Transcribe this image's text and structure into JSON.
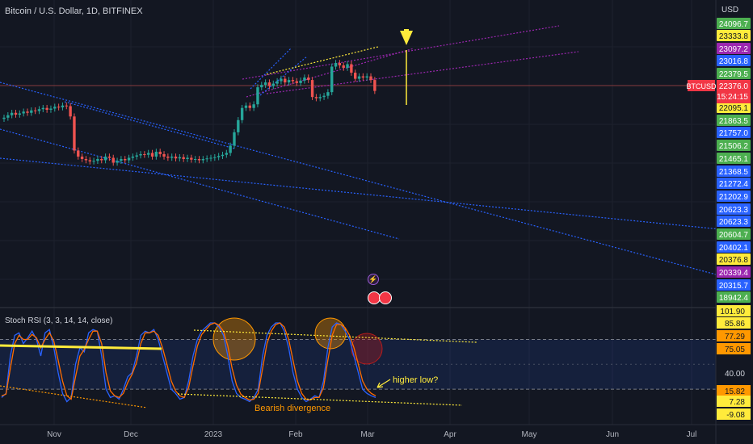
{
  "header": {
    "title": "Bitcoin / U.S. Dollar, 1D, BITFINEX",
    "currency": "USD"
  },
  "indicator": {
    "title": "Stoch RSI (3, 3, 14, 14, close)"
  },
  "annotations": {
    "bearish": "Bearish divergence",
    "higher_low": "higher low?"
  },
  "colors": {
    "background": "#131722",
    "up": "#26a69a",
    "down": "#ef5350",
    "trend_blue": "#2962ff",
    "trend_purple": "#9c27b0",
    "yellow": "#ffeb3b",
    "orange": "#ff9800",
    "k_line": "#2962ff",
    "d_line": "#ff6d00"
  },
  "chart_data": [
    {
      "type": "candlestick",
      "symbol": "BTCUSD",
      "last_price": "22376.0",
      "countdown": "15:24:15",
      "x_axis_labels": [
        "Nov",
        "Dec",
        "2023",
        "Feb",
        "Mar",
        "Apr",
        "May",
        "Jun",
        "Jul"
      ],
      "price_labels": [
        {
          "value": "24096.7",
          "color": "#4caf50"
        },
        {
          "value": "23333.8",
          "color": "#ffeb3b"
        },
        {
          "value": "23097.2",
          "color": "#9c27b0"
        },
        {
          "value": "23016.8",
          "color": "#2962ff"
        },
        {
          "value": "22379.5",
          "color": "#4caf50"
        },
        {
          "value": "22095.1",
          "color": "#ffeb3b"
        },
        {
          "value": "21863.5",
          "color": "#4caf50"
        },
        {
          "value": "21757.0",
          "color": "#2962ff"
        },
        {
          "value": "21506.2",
          "color": "#4caf50"
        },
        {
          "value": "21465.1",
          "color": "#4caf50"
        },
        {
          "value": "21368.5",
          "color": "#2962ff"
        },
        {
          "value": "21272.4",
          "color": "#2962ff"
        },
        {
          "value": "21202.9",
          "color": "#2962ff"
        },
        {
          "value": "20623.3",
          "color": "#2962ff"
        },
        {
          "value": "20623.3",
          "color": "#2962ff"
        },
        {
          "value": "20604.7",
          "color": "#4caf50"
        },
        {
          "value": "20402.1",
          "color": "#2962ff"
        },
        {
          "value": "20376.8",
          "color": "#ffeb3b"
        },
        {
          "value": "20339.4",
          "color": "#9c27b0"
        },
        {
          "value": "20315.7",
          "color": "#2962ff"
        },
        {
          "value": "18942.4",
          "color": "#4caf50"
        }
      ],
      "candles_daily_close_approx": [
        20100,
        20300,
        20500,
        20350,
        20450,
        20600,
        20500,
        20700,
        20650,
        20800,
        20900,
        20750,
        20850,
        21000,
        20950,
        21100,
        21050,
        20200,
        17400,
        16900,
        16700,
        16600,
        16500,
        16550,
        16700,
        16600,
        16900,
        16800,
        16400,
        16550,
        16700,
        16600,
        16800,
        16900,
        17000,
        17100,
        17050,
        17200,
        16900,
        17300,
        17100,
        16900,
        16800,
        16900,
        16750,
        16850,
        16700,
        16800,
        16650,
        16700,
        16600,
        16700,
        16750,
        16800,
        16850,
        16950,
        17050,
        17200,
        17800,
        18900,
        19900,
        20900,
        21100,
        20900,
        21200,
        22600,
        22800,
        23000,
        22700,
        22900,
        23100,
        23300,
        23000,
        23200,
        23100,
        22950,
        23150,
        23400,
        23200,
        21800,
        21700,
        21800,
        21900,
        22200,
        24300,
        24600,
        24400,
        24200,
        24500,
        23800,
        23300,
        23500,
        23400,
        23500,
        23200,
        22300
      ],
      "forecast_target_price": "23333.8"
    },
    {
      "type": "line",
      "title": "Stoch RSI (3, 3, 14, 14, close)",
      "ylim": [
        -9.08,
        101.9
      ],
      "band_upper": 80,
      "band_lower": 20,
      "right_labels": [
        {
          "value": "101.90",
          "color": "#ffeb3b"
        },
        {
          "value": "85.86",
          "color": "#ffeb3b"
        },
        {
          "value": "77.29",
          "color": "#ff9800"
        },
        {
          "value": "75.05",
          "color": "#ff9800"
        },
        {
          "value": "40.00",
          "color": ""
        },
        {
          "value": "15.82",
          "color": "#ff9800"
        },
        {
          "value": "7.28",
          "color": "#ffeb3b"
        },
        {
          "value": "-9.08",
          "color": "#ffeb3b"
        }
      ],
      "series": [
        {
          "name": "%K",
          "values": [
            10,
            15,
            60,
            85,
            88,
            75,
            82,
            90,
            80,
            60,
            88,
            92,
            70,
            40,
            15,
            5,
            10,
            50,
            70,
            65,
            88,
            92,
            90,
            60,
            20,
            10,
            12,
            8,
            20,
            35,
            40,
            60,
            85,
            90,
            88,
            92,
            80,
            60,
            40,
            20,
            15,
            8,
            10,
            30,
            60,
            80,
            90,
            95,
            100,
            100,
            95,
            85,
            60,
            30,
            15,
            10,
            8,
            5,
            10,
            20,
            60,
            85,
            95,
            100,
            100,
            90,
            70,
            40,
            20,
            10,
            5,
            8,
            12,
            10,
            30,
            70,
            95,
            100,
            98,
            90,
            80,
            60,
            40,
            20,
            15,
            12,
            10
          ]
        },
        {
          "name": "%D",
          "values": [
            12,
            14,
            45,
            75,
            85,
            80,
            80,
            86,
            82,
            70,
            80,
            88,
            78,
            55,
            30,
            12,
            8,
            35,
            60,
            68,
            80,
            90,
            90,
            75,
            40,
            18,
            12,
            10,
            15,
            28,
            38,
            52,
            75,
            88,
            88,
            90,
            85,
            70,
            50,
            30,
            18,
            12,
            10,
            22,
            48,
            72,
            86,
            92,
            98,
            100,
            97,
            90,
            72,
            45,
            25,
            14,
            10,
            7,
            8,
            15,
            45,
            75,
            90,
            98,
            100,
            95,
            80,
            55,
            30,
            15,
            8,
            7,
            10,
            10,
            22,
            55,
            85,
            98,
            98,
            94,
            85,
            70,
            50,
            30,
            20,
            15,
            12
          ]
        }
      ]
    }
  ]
}
